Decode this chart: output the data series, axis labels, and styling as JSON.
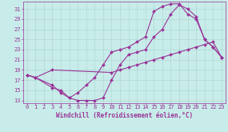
{
  "xlabel": "Windchill (Refroidissement éolien,°C)",
  "bg_color": "#c8ece9",
  "grid_color": "#a8d4d0",
  "line_color": "#993399",
  "spine_color": "#993399",
  "xlim": [
    -0.5,
    23.5
  ],
  "ylim": [
    12.5,
    32.5
  ],
  "xticks": [
    0,
    1,
    2,
    3,
    4,
    5,
    6,
    7,
    8,
    9,
    10,
    11,
    12,
    13,
    14,
    15,
    16,
    17,
    18,
    19,
    20,
    21,
    22,
    23
  ],
  "yticks": [
    13,
    15,
    17,
    19,
    21,
    23,
    25,
    27,
    29,
    31
  ],
  "line1_x": [
    0,
    1,
    3,
    4,
    5,
    6,
    7,
    8,
    9,
    10,
    11,
    12,
    13,
    14,
    15,
    16,
    17,
    18,
    19,
    20,
    21,
    22,
    23
  ],
  "line1_y": [
    18,
    17.5,
    16,
    14.5,
    13.5,
    13,
    13,
    13,
    13.5,
    17,
    20,
    22,
    22.5,
    23,
    25.5,
    27,
    30,
    31.8,
    31,
    29.5,
    25,
    23.5,
    21.5
  ],
  "line2_x": [
    0,
    1,
    3,
    4,
    5,
    6,
    7,
    8,
    9,
    10,
    11,
    12,
    13,
    14,
    15,
    16,
    17,
    18,
    19,
    20,
    21,
    22,
    23
  ],
  "line2_y": [
    18,
    17.5,
    15.5,
    15,
    13.5,
    14.5,
    16,
    17.5,
    20,
    22.5,
    23,
    23.5,
    24.5,
    25.5,
    30.5,
    31.5,
    32,
    32,
    30,
    29,
    25,
    23.5,
    21.5
  ],
  "line3_x": [
    0,
    1,
    3,
    10,
    11,
    12,
    13,
    14,
    15,
    16,
    17,
    18,
    19,
    20,
    21,
    22,
    23
  ],
  "line3_y": [
    18,
    17.5,
    19,
    18.5,
    19,
    19.5,
    20,
    20.5,
    21,
    21.5,
    22,
    22.5,
    23,
    23.5,
    24,
    24.5,
    21.5
  ],
  "tick_fontsize": 5,
  "xlabel_fontsize": 5.5,
  "marker_size": 2.0,
  "linewidth": 0.8
}
